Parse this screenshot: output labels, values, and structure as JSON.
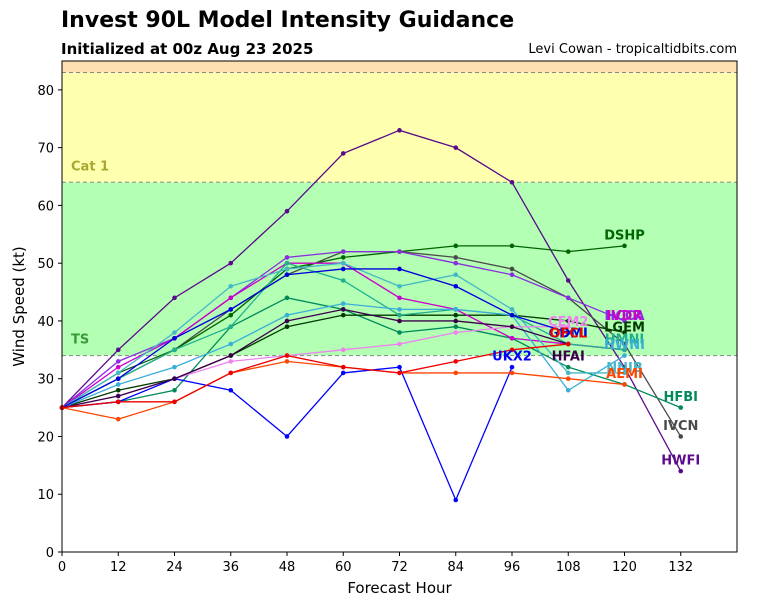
{
  "chart_data": {
    "type": "line",
    "title": "Invest 90L Model Intensity Guidance",
    "subtitle": "Initialized at 00z Aug 23 2025",
    "credit": "Levi Cowan - tropicaltidbits.com",
    "xlabel": "Forecast Hour",
    "ylabel": "Wind Speed (kt)",
    "xlim": [
      0,
      144
    ],
    "ylim": [
      0,
      85
    ],
    "xticks": [
      0,
      12,
      24,
      36,
      48,
      60,
      72,
      84,
      96,
      108,
      120,
      132
    ],
    "yticks": [
      0,
      10,
      20,
      30,
      40,
      50,
      60,
      70,
      80
    ],
    "grid": false,
    "bands": [
      {
        "label": "TS",
        "from": 34,
        "to": 64,
        "color": "#b3ffb3",
        "label_color": "#3a9a3a"
      },
      {
        "label": "Cat 1",
        "from": 64,
        "to": 83,
        "color": "#ffffb0",
        "label_color": "#a8a830"
      },
      {
        "label": "",
        "from": 83,
        "to": 85,
        "color": "#ffe0b0",
        "label_color": "#cc8800"
      }
    ],
    "series": [
      {
        "name": "HWFI",
        "color": "#5a0a8a",
        "x": [
          0,
          12,
          24,
          36,
          48,
          60,
          72,
          84,
          96,
          108,
          120,
          132
        ],
        "y": [
          25,
          35,
          44,
          50,
          59,
          69,
          73,
          70,
          64,
          47,
          32,
          14
        ]
      },
      {
        "name": "IVCN",
        "color": "#4a4a4a",
        "x": [
          0,
          12,
          24,
          36,
          48,
          60,
          72,
          84,
          96,
          108,
          120,
          132
        ],
        "y": [
          25,
          30,
          35,
          42,
          48,
          52,
          52,
          51,
          49,
          44,
          36,
          20
        ]
      },
      {
        "name": "HFBI",
        "color": "#008a5a",
        "x": [
          0,
          12,
          24,
          36,
          48,
          60,
          72,
          84,
          96,
          108,
          120,
          132
        ],
        "y": [
          25,
          26,
          28,
          39,
          44,
          42,
          38,
          39,
          37,
          32,
          29,
          25
        ]
      },
      {
        "name": "DSHP",
        "color": "#006400",
        "x": [
          0,
          12,
          24,
          36,
          48,
          60,
          72,
          84,
          96,
          108,
          120
        ],
        "y": [
          25,
          31,
          35,
          41,
          49,
          51,
          52,
          53,
          53,
          52,
          53
        ]
      },
      {
        "name": "LGEM",
        "color": "#003a00",
        "x": [
          0,
          12,
          24,
          36,
          48,
          60,
          72,
          84,
          96,
          108,
          120
        ],
        "y": [
          25,
          28,
          30,
          34,
          39,
          41,
          41,
          41,
          41,
          40,
          38
        ]
      },
      {
        "name": "HCCA",
        "color": "#8a2be2",
        "x": [
          0,
          12,
          24,
          36,
          48,
          60,
          72,
          84,
          96,
          108,
          120
        ],
        "y": [
          25,
          33,
          37,
          44,
          51,
          52,
          52,
          50,
          48,
          44,
          40
        ]
      },
      {
        "name": "IVDR",
        "color": "#cc00cc",
        "x": [
          0,
          12,
          24,
          36,
          48,
          60,
          72,
          84,
          96,
          108,
          120
        ],
        "y": [
          25,
          32,
          37,
          44,
          50,
          50,
          44,
          42,
          37,
          36,
          35
        ]
      },
      {
        "name": "HMNI",
        "color": "#20b090",
        "x": [
          0,
          12,
          24,
          36,
          48,
          60,
          72,
          84,
          96,
          108,
          120
        ],
        "y": [
          25,
          30,
          35,
          39,
          50,
          47,
          41,
          42,
          41,
          36,
          35
        ]
      },
      {
        "name": "HWNI",
        "color": "#3aaed8",
        "x": [
          0,
          12,
          24,
          36,
          48,
          60,
          72,
          84,
          96,
          108,
          120
        ],
        "y": [
          25,
          29,
          32,
          36,
          41,
          43,
          42,
          42,
          41,
          28,
          34
        ]
      },
      {
        "name": "NNIB",
        "color": "#44b8c8",
        "x": [
          0,
          12,
          24,
          36,
          48,
          60,
          72,
          84,
          96,
          108,
          120
        ],
        "y": [
          25,
          31,
          38,
          46,
          49,
          50,
          46,
          48,
          42,
          31,
          31
        ]
      },
      {
        "name": "CEM2",
        "color": "#ee82ee",
        "x": [
          0,
          12,
          24,
          36,
          48,
          60,
          72,
          84,
          96,
          108
        ],
        "y": [
          25,
          27,
          30,
          33,
          34,
          35,
          36,
          38,
          39,
          39
        ]
      },
      {
        "name": "GDMI",
        "color": "#0000dd",
        "x": [
          0,
          12,
          24,
          36,
          48,
          60,
          72,
          84,
          96,
          108
        ],
        "y": [
          25,
          30,
          37,
          42,
          48,
          49,
          49,
          46,
          41,
          38
        ]
      },
      {
        "name": "UKX2",
        "color": "#0000ff",
        "x": [
          0,
          12,
          24,
          36,
          48,
          60,
          72,
          84,
          96
        ],
        "y": [
          25,
          26,
          30,
          28,
          20,
          31,
          32,
          9,
          32
        ]
      },
      {
        "name": "HFAI",
        "color": "#3a004a",
        "x": [
          0,
          12,
          24,
          36,
          48,
          60,
          72,
          84,
          96,
          108
        ],
        "y": [
          25,
          27,
          30,
          34,
          40,
          42,
          40,
          40,
          39,
          36
        ]
      },
      {
        "name": "AEMI",
        "color": "#ff4500",
        "x": [
          0,
          12,
          24,
          36,
          48,
          60,
          72,
          84,
          96,
          108,
          120
        ],
        "y": [
          25,
          23,
          26,
          31,
          33,
          32,
          31,
          31,
          31,
          30,
          29
        ]
      },
      {
        "name": "OFCL",
        "color": "#ee0000",
        "x": [
          0,
          12,
          24,
          36,
          48,
          60,
          72,
          84,
          96,
          108
        ],
        "y": [
          25,
          26,
          26,
          31,
          34,
          32,
          31,
          33,
          35,
          36
        ]
      }
    ],
    "end_labels": [
      {
        "text": "DSHP",
        "color": "#006400",
        "x": 120,
        "y": 55
      },
      {
        "text": "HCCA",
        "color": "#8a2be2",
        "x": 120,
        "y": 41
      },
      {
        "text": "IVDR",
        "color": "#cc00cc",
        "x": 120,
        "y": 41
      },
      {
        "text": "LGEM",
        "color": "#003a00",
        "x": 120,
        "y": 39
      },
      {
        "text": "HMNI",
        "color": "#20b090",
        "x": 120,
        "y": 37
      },
      {
        "text": "HWNI",
        "color": "#3aaed8",
        "x": 120,
        "y": 36
      },
      {
        "text": "NNIB",
        "color": "#44b8c8",
        "x": 120,
        "y": 32
      },
      {
        "text": "AEMI",
        "color": "#ff4500",
        "x": 120,
        "y": 31
      },
      {
        "text": "CEM2",
        "color": "#ee82ee",
        "x": 108,
        "y": 40
      },
      {
        "text": "GDMI",
        "color": "#0000dd",
        "x": 108,
        "y": 38
      },
      {
        "text": "OFCL",
        "color": "#ee0000",
        "x": 108,
        "y": 38
      },
      {
        "text": "HFAI",
        "color": "#3a004a",
        "x": 108,
        "y": 34
      },
      {
        "text": "UKX2",
        "color": "#0000ff",
        "x": 96,
        "y": 34
      },
      {
        "text": "HFBI",
        "color": "#008a5a",
        "x": 132,
        "y": 27
      },
      {
        "text": "IVCN",
        "color": "#4a4a4a",
        "x": 132,
        "y": 22
      },
      {
        "text": "HWFI",
        "color": "#5a0a8a",
        "x": 132,
        "y": 16
      }
    ]
  }
}
